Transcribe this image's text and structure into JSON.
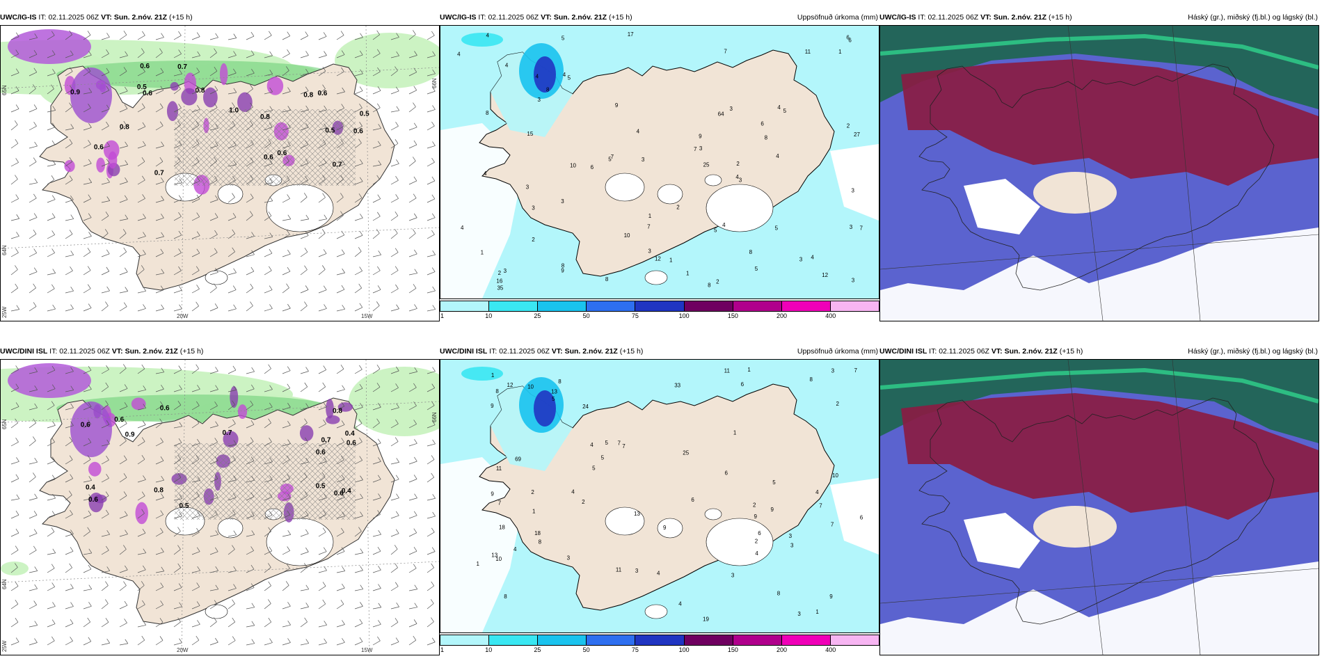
{
  "header": {
    "issue_label": "IT:",
    "issue_time": "02.11.2025 06Z",
    "valid_label": "VT:",
    "valid_time": "Sun. 2.nóv. 21Z",
    "lead": "(+15 h)"
  },
  "rows": [
    {
      "model": "UWC/IG-IS"
    },
    {
      "model": "UWC/DINI ISL"
    }
  ],
  "panels": {
    "wind": {
      "right_label": ""
    },
    "precip": {
      "right_label": "Uppsöfnuð úrkoma (mm)"
    },
    "cloud": {
      "right_label": "Háský (gr.), miðský (fj.bl.) og lágský (bl.)"
    }
  },
  "grid_labels": {
    "lon_20": "20W",
    "lon_15": "15W",
    "lon_25": "25W",
    "lat_65": "65N",
    "lat_64": "64N",
    "lat_66": "66N"
  },
  "legend": {
    "colors": [
      "#b3f6fb",
      "#3ae7f2",
      "#1ac3ee",
      "#2e6ff0",
      "#2035c2",
      "#6f0060",
      "#b0008c",
      "#f000b8",
      "#f7b5f2"
    ],
    "ticks": [
      "1",
      "10",
      "25",
      "50",
      "75",
      "100",
      "150",
      "200",
      "400"
    ]
  },
  "wind_values": {
    "row0": [
      "0.6",
      "0.6",
      "0.8",
      "0.8",
      "0.5",
      "0.7",
      "1.0",
      "0.7",
      "0.5",
      "0.8",
      "0.9",
      "0.6",
      "0.6",
      "0.5",
      "0.7",
      "0.8",
      "0.6",
      "0.6",
      "0.6"
    ],
    "row1": [
      "0.5",
      "0.4",
      "0.4",
      "0.7",
      "0.6",
      "0.6",
      "0.7",
      "0.8",
      "0.8",
      "0.9",
      "0.6",
      "0.6",
      "0.6",
      "0.5",
      "0.4",
      "0.6",
      "0.6"
    ]
  },
  "precip_values": {
    "row0": [
      "8",
      "8",
      "8",
      "8",
      "5",
      "4",
      "10",
      "12",
      "17",
      "9",
      "11",
      "12",
      "7",
      "7",
      "7",
      "7",
      "8",
      "9",
      "6",
      "4",
      "5",
      "6",
      "9",
      "2",
      "5",
      "3",
      "4",
      "3",
      "4",
      "3",
      "3",
      "2",
      "1",
      "1",
      "2",
      "2",
      "3",
      "1",
      "3",
      "4",
      "3",
      "8",
      "7",
      "3",
      "5",
      "4",
      "3",
      "1",
      "4",
      "3",
      "6",
      "2",
      "3",
      "5",
      "3",
      "4",
      "5",
      "4",
      "4",
      "4",
      "3",
      "5",
      "3",
      "4",
      "1",
      "16",
      "25",
      "27",
      "35",
      "64",
      "10",
      "2",
      "8",
      "15",
      "6",
      "4"
    ],
    "row1": [
      "9",
      "7",
      "8",
      "8",
      "7",
      "8",
      "10",
      "6",
      "4",
      "19",
      "9",
      "9",
      "8",
      "9",
      "11",
      "10",
      "9",
      "6",
      "7",
      "8",
      "7",
      "8",
      "5",
      "7",
      "11",
      "13",
      "6",
      "7",
      "5",
      "5",
      "4",
      "3",
      "5",
      "2",
      "4",
      "3",
      "2",
      "2",
      "4",
      "4",
      "2",
      "1",
      "1",
      "3",
      "3",
      "3",
      "1",
      "12",
      "6",
      "11",
      "6",
      "5",
      "3",
      "2",
      "4",
      "3",
      "1",
      "1",
      "1",
      "10",
      "9",
      "24",
      "25",
      "18",
      "33",
      "69",
      "13",
      "18",
      "4",
      "13"
    ]
  }
}
